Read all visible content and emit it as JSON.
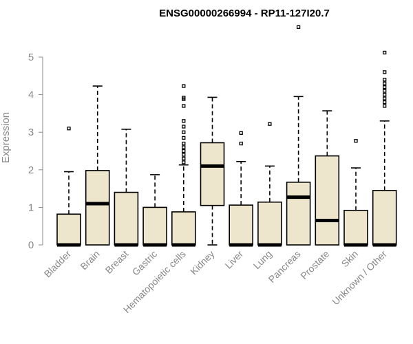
{
  "chart_data": {
    "type": "boxplot",
    "title": "ENSG00000266994 - RP11-127I20.7",
    "ylabel": "Expression",
    "xlabel": "",
    "ylim": [
      0,
      5.5
    ],
    "yticks": [
      0,
      1,
      2,
      3,
      4,
      5
    ],
    "colors": {
      "box_fill": "#EDE6CC",
      "stroke": "#000000",
      "axis": "#888888"
    },
    "categories": [
      "Bladder",
      "Brain",
      "Breast",
      "Gastric",
      "Hematopoietic cells",
      "Kidney",
      "Liver",
      "Lung",
      "Pancreas",
      "Prostate",
      "Skin",
      "Unknown / Other"
    ],
    "boxes": [
      {
        "q1": 0,
        "median": 0,
        "q3": 0.82,
        "whisker_low": 0,
        "whisker_high": 1.95,
        "outliers": [
          3.1
        ]
      },
      {
        "q1": 0,
        "median": 1.1,
        "q3": 1.98,
        "whisker_low": 0,
        "whisker_high": 4.23,
        "outliers": []
      },
      {
        "q1": 0,
        "median": 0,
        "q3": 1.4,
        "whisker_low": 0,
        "whisker_high": 3.08,
        "outliers": []
      },
      {
        "q1": 0,
        "median": 0,
        "q3": 1.0,
        "whisker_low": 0,
        "whisker_high": 1.87,
        "outliers": []
      },
      {
        "q1": 0,
        "median": 0,
        "q3": 0.88,
        "whisker_low": 0,
        "whisker_high": 2.13,
        "outliers": [
          2.2,
          2.3,
          2.4,
          2.5,
          2.6,
          2.7,
          2.85,
          3.0,
          3.15,
          3.3,
          3.7,
          3.88,
          3.92,
          4.23
        ]
      },
      {
        "q1": 1.05,
        "median": 2.1,
        "q3": 2.72,
        "whisker_low": 0,
        "whisker_high": 3.93,
        "outliers": []
      },
      {
        "q1": 0,
        "median": 0,
        "q3": 1.06,
        "whisker_low": 0,
        "whisker_high": 2.22,
        "outliers": [
          2.7,
          2.98
        ]
      },
      {
        "q1": 0,
        "median": 0,
        "q3": 1.14,
        "whisker_low": 0,
        "whisker_high": 2.1,
        "outliers": [
          3.22
        ]
      },
      {
        "q1": 0,
        "median": 1.27,
        "q3": 1.67,
        "whisker_low": 0,
        "whisker_high": 3.95,
        "outliers": [
          5.8
        ]
      },
      {
        "q1": 0,
        "median": 0.65,
        "q3": 2.37,
        "whisker_low": 0,
        "whisker_high": 3.57,
        "outliers": []
      },
      {
        "q1": 0,
        "median": 0,
        "q3": 0.92,
        "whisker_low": 0,
        "whisker_high": 2.05,
        "outliers": [
          2.77
        ]
      },
      {
        "q1": 0,
        "median": 0,
        "q3": 1.45,
        "whisker_low": 0,
        "whisker_high": 3.3,
        "outliers": [
          3.7,
          3.8,
          3.9,
          4.0,
          4.1,
          4.2,
          4.3,
          4.4,
          4.6,
          5.12
        ]
      }
    ]
  }
}
